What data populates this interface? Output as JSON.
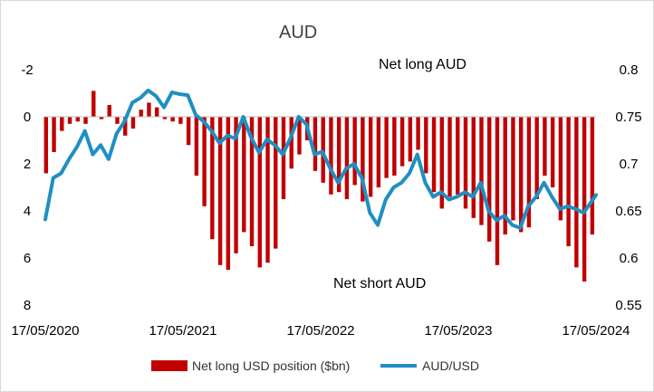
{
  "chart_data": {
    "type": "bar+line",
    "title": "AUD",
    "annotations": {
      "top": "Net long AUD",
      "bottom": "Net short AUD"
    },
    "x_tick_labels": [
      "17/05/2020",
      "17/05/2021",
      "17/05/2022",
      "17/05/2023",
      "17/05/2024"
    ],
    "x_range": [
      "2020-05-17",
      "2024-05-17"
    ],
    "y_left": {
      "ticks": [
        -2,
        0,
        2,
        4,
        6,
        8
      ],
      "range": [
        -2,
        8
      ],
      "inverted": true
    },
    "y_right": {
      "ticks": [
        0.8,
        0.75,
        0.7,
        0.65,
        0.6,
        0.55
      ],
      "range": [
        0.55,
        0.8
      ]
    },
    "legend": {
      "position": "bottom",
      "bar_label": "Net long USD position ($bn)",
      "line_label": "AUD/USD"
    },
    "colors": {
      "bar": "#c00000",
      "line": "#1f8fc2"
    },
    "grid": false,
    "bar_series": {
      "name": "Net long USD position ($bn)",
      "x": [
        "2020-05-19",
        "2020-06-09",
        "2020-06-30",
        "2020-07-21",
        "2020-08-11",
        "2020-09-01",
        "2020-09-22",
        "2020-10-13",
        "2020-11-03",
        "2020-11-24",
        "2020-12-15",
        "2021-01-05",
        "2021-01-26",
        "2021-02-16",
        "2021-03-09",
        "2021-03-30",
        "2021-04-20",
        "2021-05-11",
        "2021-06-01",
        "2021-06-22",
        "2021-07-13",
        "2021-08-03",
        "2021-08-24",
        "2021-09-14",
        "2021-10-05",
        "2021-10-26",
        "2021-11-16",
        "2021-12-07",
        "2021-12-28",
        "2022-01-18",
        "2022-02-08",
        "2022-03-01",
        "2022-03-22",
        "2022-04-12",
        "2022-05-03",
        "2022-05-24",
        "2022-06-14",
        "2022-07-05",
        "2022-07-26",
        "2022-08-16",
        "2022-09-06",
        "2022-09-27",
        "2022-10-18",
        "2022-11-08",
        "2022-11-29",
        "2022-12-20",
        "2023-01-10",
        "2023-01-31",
        "2023-02-21",
        "2023-03-14",
        "2023-04-04",
        "2023-04-25",
        "2023-05-16",
        "2023-06-06",
        "2023-06-27",
        "2023-07-18",
        "2023-08-08",
        "2023-08-29",
        "2023-09-19",
        "2023-10-10",
        "2023-10-31",
        "2023-11-21",
        "2023-12-12",
        "2024-01-02",
        "2024-01-23",
        "2024-02-13",
        "2024-03-05",
        "2024-03-26",
        "2024-04-16",
        "2024-05-07"
      ],
      "values": [
        2.4,
        1.5,
        0.6,
        0.3,
        0.2,
        0.3,
        -1.1,
        0.1,
        -0.5,
        0.3,
        0.8,
        0.5,
        -0.3,
        -0.6,
        -0.4,
        0.1,
        0.2,
        0.3,
        1.2,
        2.5,
        3.8,
        5.2,
        6.3,
        6.5,
        5.8,
        4.9,
        5.5,
        6.4,
        6.2,
        5.6,
        3.5,
        2.2,
        1.6,
        1.0,
        2.3,
        2.8,
        3.3,
        3.2,
        3.5,
        2.9,
        3.6,
        3.4,
        3.0,
        2.6,
        2.5,
        2.1,
        1.9,
        1.4,
        2.4,
        3.2,
        3.9,
        3.4,
        3.3,
        3.9,
        4.3,
        4.6,
        5.3,
        6.3,
        5.0,
        4.4,
        4.9,
        4.7,
        3.5,
        2.5,
        3.0,
        4.4,
        5.5,
        6.4,
        7.0,
        5.0
      ]
    },
    "line_series": {
      "name": "AUD/USD",
      "x": [
        "2020-05-17",
        "2020-06-07",
        "2020-06-28",
        "2020-07-19",
        "2020-08-09",
        "2020-08-30",
        "2020-09-20",
        "2020-10-11",
        "2020-11-01",
        "2020-11-22",
        "2020-12-13",
        "2021-01-03",
        "2021-01-24",
        "2021-02-14",
        "2021-03-07",
        "2021-03-28",
        "2021-04-18",
        "2021-05-09",
        "2021-05-30",
        "2021-06-20",
        "2021-07-11",
        "2021-08-01",
        "2021-08-22",
        "2021-09-12",
        "2021-10-03",
        "2021-10-24",
        "2021-11-14",
        "2021-12-05",
        "2021-12-26",
        "2022-01-16",
        "2022-02-06",
        "2022-02-27",
        "2022-03-20",
        "2022-04-10",
        "2022-05-01",
        "2022-05-22",
        "2022-06-12",
        "2022-07-03",
        "2022-07-24",
        "2022-08-14",
        "2022-09-04",
        "2022-09-25",
        "2022-10-16",
        "2022-11-06",
        "2022-11-27",
        "2022-12-18",
        "2023-01-08",
        "2023-01-29",
        "2023-02-19",
        "2023-03-12",
        "2023-04-02",
        "2023-04-23",
        "2023-05-14",
        "2023-06-04",
        "2023-06-25",
        "2023-07-16",
        "2023-08-06",
        "2023-08-27",
        "2023-09-17",
        "2023-10-08",
        "2023-10-29",
        "2023-11-19",
        "2023-12-10",
        "2023-12-31",
        "2024-01-21",
        "2024-02-11",
        "2024-03-03",
        "2024-03-24",
        "2024-04-14",
        "2024-05-05",
        "2024-05-17"
      ],
      "values": [
        0.641,
        0.685,
        0.69,
        0.705,
        0.718,
        0.735,
        0.71,
        0.72,
        0.705,
        0.732,
        0.745,
        0.765,
        0.77,
        0.778,
        0.772,
        0.76,
        0.776,
        0.774,
        0.773,
        0.752,
        0.745,
        0.735,
        0.722,
        0.73,
        0.727,
        0.75,
        0.728,
        0.712,
        0.726,
        0.72,
        0.71,
        0.728,
        0.75,
        0.742,
        0.71,
        0.713,
        0.695,
        0.68,
        0.695,
        0.7,
        0.685,
        0.648,
        0.635,
        0.662,
        0.675,
        0.68,
        0.69,
        0.71,
        0.68,
        0.665,
        0.67,
        0.662,
        0.665,
        0.67,
        0.665,
        0.68,
        0.65,
        0.64,
        0.645,
        0.635,
        0.632,
        0.655,
        0.665,
        0.68,
        0.665,
        0.652,
        0.655,
        0.652,
        0.648,
        0.66,
        0.667
      ]
    }
  }
}
